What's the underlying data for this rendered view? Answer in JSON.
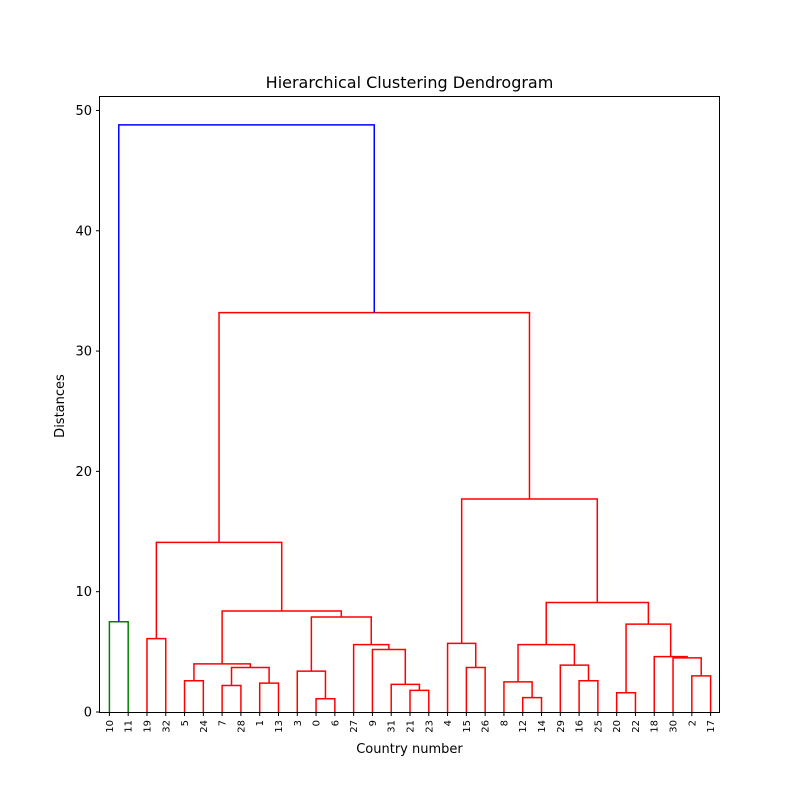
{
  "chart_data": {
    "type": "dendrogram",
    "title": "Hierarchical Clustering Dendrogram",
    "xlabel": "Country number",
    "ylabel": "Distances",
    "ylim": [
      0,
      51.2
    ],
    "yticks": [
      0,
      10,
      20,
      30,
      40,
      50
    ],
    "grid": false,
    "leaves": [
      "10",
      "11",
      "19",
      "32",
      "5",
      "24",
      "7",
      "28",
      "1",
      "13",
      "3",
      "0",
      "6",
      "27",
      "9",
      "31",
      "21",
      "23",
      "4",
      "15",
      "26",
      "8",
      "12",
      "14",
      "29",
      "16",
      "25",
      "20",
      "22",
      "18",
      "30",
      "2",
      "17"
    ],
    "colors": {
      "green": "#008000",
      "red": "#ff0000",
      "blue": "#0000ff"
    },
    "tree": {
      "h": 48.8,
      "c": "blue",
      "ch": [
        {
          "h": 7.5,
          "c": "green",
          "ch": [
            0,
            1
          ]
        },
        {
          "h": 33.2,
          "c": "red",
          "ch": [
            {
              "h": 14.1,
              "c": "red",
              "ch": [
                {
                  "h": 6.1,
                  "c": "red",
                  "ch": [
                    2,
                    3
                  ]
                },
                {
                  "h": 8.4,
                  "c": "red",
                  "ch": [
                    {
                      "h": 4.0,
                      "c": "red",
                      "ch": [
                        {
                          "h": 2.6,
                          "c": "red",
                          "ch": [
                            4,
                            5
                          ]
                        },
                        {
                          "h": 3.7,
                          "c": "red",
                          "ch": [
                            {
                              "h": 2.2,
                              "c": "red",
                              "ch": [
                                6,
                                7
                              ]
                            },
                            {
                              "h": 2.4,
                              "c": "red",
                              "ch": [
                                8,
                                9
                              ]
                            }
                          ]
                        }
                      ]
                    },
                    {
                      "h": 7.9,
                      "c": "red",
                      "ch": [
                        {
                          "h": 3.4,
                          "c": "red",
                          "ch": [
                            10,
                            {
                              "h": 1.1,
                              "c": "red",
                              "ch": [
                                11,
                                12
                              ]
                            }
                          ]
                        },
                        {
                          "h": 5.6,
                          "c": "red",
                          "ch": [
                            13,
                            {
                              "h": 5.2,
                              "c": "red",
                              "ch": [
                                14,
                                {
                                  "h": 2.3,
                                  "c": "red",
                                  "ch": [
                                    15,
                                    {
                                      "h": 1.8,
                                      "c": "red",
                                      "ch": [
                                        16,
                                        17
                                      ]
                                    }
                                  ]
                                }
                              ]
                            }
                          ]
                        }
                      ]
                    }
                  ]
                }
              ]
            },
            {
              "h": 17.7,
              "c": "red",
              "ch": [
                {
                  "h": 5.7,
                  "c": "red",
                  "ch": [
                    18,
                    {
                      "h": 3.7,
                      "c": "red",
                      "ch": [
                        19,
                        20
                      ]
                    }
                  ]
                },
                {
                  "h": 9.1,
                  "c": "red",
                  "ch": [
                    {
                      "h": 5.6,
                      "c": "red",
                      "ch": [
                        {
                          "h": 2.5,
                          "c": "red",
                          "ch": [
                            21,
                            {
                              "h": 1.2,
                              "c": "red",
                              "ch": [
                                22,
                                23
                              ]
                            }
                          ]
                        },
                        {
                          "h": 3.9,
                          "c": "red",
                          "ch": [
                            24,
                            {
                              "h": 2.6,
                              "c": "red",
                              "ch": [
                                25,
                                26
                              ]
                            }
                          ]
                        }
                      ]
                    },
                    {
                      "h": 7.3,
                      "c": "red",
                      "ch": [
                        {
                          "h": 1.6,
                          "c": "red",
                          "ch": [
                            27,
                            28
                          ]
                        },
                        {
                          "h": 4.6,
                          "c": "red",
                          "ch": [
                            29,
                            {
                              "h": 4.5,
                              "c": "red",
                              "ch": [
                                30,
                                {
                                  "h": 3.0,
                                  "c": "red",
                                  "ch": [
                                    31,
                                    32
                                  ]
                                }
                              ]
                            }
                          ]
                        }
                      ]
                    }
                  ]
                }
              ]
            }
          ]
        }
      ]
    }
  }
}
